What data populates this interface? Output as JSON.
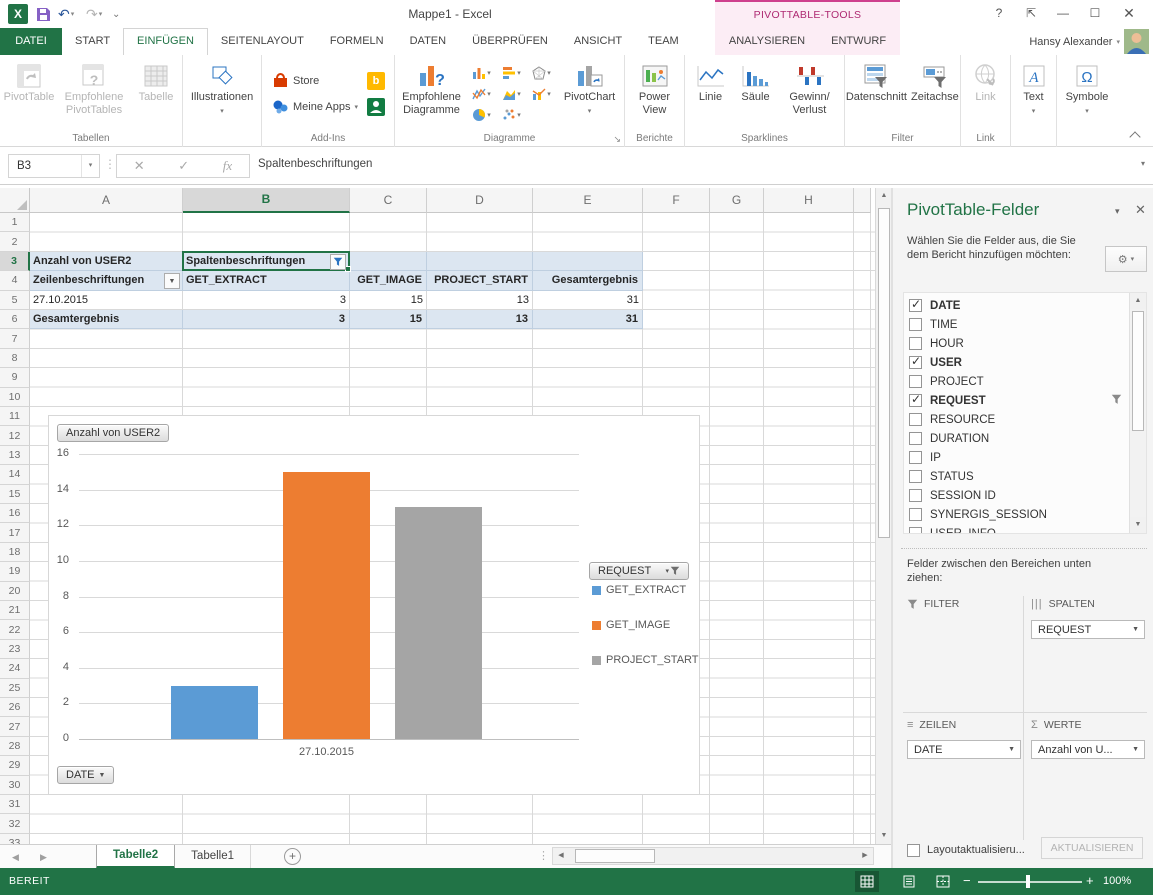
{
  "titlebar": {
    "title": "Mappe1 - Excel",
    "contextual_label": "PIVOTTABLE-TOOLS"
  },
  "tabs": {
    "file": "DATEI",
    "main": [
      "START",
      "EINFÜGEN",
      "SEITENLAYOUT",
      "FORMELN",
      "DATEN",
      "ÜBERPRÜFEN",
      "ANSICHT",
      "TEAM"
    ],
    "active": "EINFÜGEN",
    "contextual": [
      "ANALYSIEREN",
      "ENTWURF"
    ],
    "user_name": "Hansy Alexander"
  },
  "ribbon": {
    "pivottable": "PivotTable",
    "empfohlene_pivottables": "Empfohlene PivotTables",
    "tabelle": "Tabelle",
    "illustrationen": "Illustrationen",
    "store": "Store",
    "meine_apps": "Meine Apps",
    "empfohlene_diagramme": "Empfohlene Diagramme",
    "pivotchart": "PivotChart",
    "power_view": "Power View",
    "linie": "Linie",
    "saeule": "Säule",
    "gewinn_line1": "Gewinn/",
    "gewinn_line2": "Verlust",
    "datenschnitt": "Datenschnitt",
    "zeitachse": "Zeitachse",
    "link": "Link",
    "text": "Text",
    "symbole": "Symbole",
    "groups": {
      "tabellen": "Tabellen",
      "addins": "Add-Ins",
      "diagramme": "Diagramme",
      "berichte": "Berichte",
      "sparklines": "Sparklines",
      "filter": "Filter",
      "link": "Link"
    }
  },
  "formula_bar": {
    "cell_ref": "B3",
    "formula": "Spaltenbeschriftungen"
  },
  "grid": {
    "column_labels": [
      "A",
      "B",
      "C",
      "D",
      "E",
      "F",
      "G",
      "H"
    ],
    "selected_column": "B",
    "selected_row": 3,
    "first_row": 1,
    "last_row": 32
  },
  "pivot_table": {
    "value_title": "Anzahl von USER2",
    "column_header_label": "Spaltenbeschriftungen",
    "row_header_label": "Zeilenbeschriftungen",
    "column_fields": [
      "GET_EXTRACT",
      "GET_IMAGE",
      "PROJECT_START",
      "Gesamtergebnis"
    ],
    "rows": [
      {
        "label": "27.10.2015",
        "values": [
          3,
          15,
          13,
          31
        ]
      }
    ],
    "grand_total": {
      "label": "Gesamtergebnis",
      "values": [
        3,
        15,
        13,
        31
      ]
    }
  },
  "chart_data": {
    "type": "bar",
    "title_field_button": "Anzahl von USER2",
    "axis_field_button": "DATE",
    "legend_field_button": "REQUEST",
    "categories": [
      "27.10.2015"
    ],
    "series": [
      {
        "name": "GET_EXTRACT",
        "values": [
          3
        ],
        "color": "#5B9BD5"
      },
      {
        "name": "GET_IMAGE",
        "values": [
          15
        ],
        "color": "#ED7D31"
      },
      {
        "name": "PROJECT_START",
        "values": [
          13
        ],
        "color": "#A5A5A5"
      }
    ],
    "ylim": [
      0,
      16
    ],
    "ytick_step": 2,
    "grid": true,
    "legend_position": "right"
  },
  "panel": {
    "title": "PivotTable-Felder",
    "subtitle": "Wählen Sie die Felder aus, die Sie dem Bericht hinzufügen möchten:",
    "fields": [
      {
        "name": "DATE",
        "checked": true
      },
      {
        "name": "TIME",
        "checked": false
      },
      {
        "name": "HOUR",
        "checked": false
      },
      {
        "name": "USER",
        "checked": true
      },
      {
        "name": "PROJECT",
        "checked": false
      },
      {
        "name": "REQUEST",
        "checked": true,
        "filtered": true
      },
      {
        "name": "RESOURCE",
        "checked": false
      },
      {
        "name": "DURATION",
        "checked": false
      },
      {
        "name": "IP",
        "checked": false
      },
      {
        "name": "STATUS",
        "checked": false
      },
      {
        "name": "SESSION ID",
        "checked": false
      },
      {
        "name": "SYNERGIS_SESSION",
        "checked": false
      },
      {
        "name": "USER_INFO",
        "checked": false
      }
    ],
    "drag_hint": "Felder zwischen den Bereichen unten ziehen:",
    "areas": {
      "filter": {
        "label": "FILTER",
        "items": []
      },
      "columns": {
        "label": "SPALTEN",
        "items": [
          "REQUEST"
        ]
      },
      "rows": {
        "label": "ZEILEN",
        "items": [
          "DATE"
        ]
      },
      "values": {
        "label": "WERTE",
        "items": [
          "Anzahl von U..."
        ]
      }
    },
    "defer_label": "Layoutaktualisieru...",
    "update_button": "AKTUALISIEREN"
  },
  "sheet_tabs": {
    "items": [
      "Tabelle2",
      "Tabelle1"
    ],
    "active": "Tabelle2",
    "add_button": "+"
  },
  "status_bar": {
    "mode": "BEREIT",
    "zoom_level": "100%"
  }
}
